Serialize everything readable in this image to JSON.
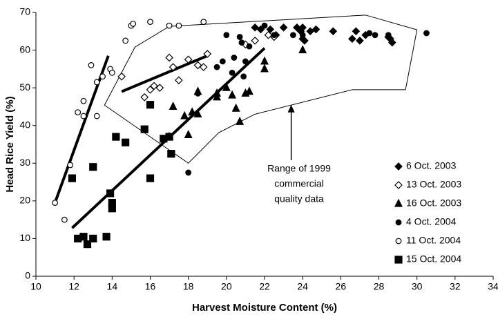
{
  "chart_data": {
    "type": "scatter",
    "xlabel": "Harvest Moisture Content (%)",
    "ylabel": "Head Rice Yield (%)",
    "xlim": [
      10,
      34
    ],
    "xticks": [
      10,
      12,
      14,
      16,
      18,
      20,
      22,
      24,
      26,
      28,
      30,
      32,
      34
    ],
    "ylim": [
      0,
      70
    ],
    "yticks": [
      0,
      10,
      20,
      30,
      40,
      50,
      60,
      70
    ],
    "legend": "lower right",
    "series": [
      {
        "name": "6 Oct. 2003",
        "color": "#000000",
        "marker": "diamond",
        "filled": true,
        "x": [
          21.5,
          21.8,
          22.3,
          22.6,
          23,
          23.7,
          23.9,
          24,
          24,
          24.1,
          24.4,
          24.7,
          25.6,
          26.6,
          26.8,
          27,
          27.3,
          28.5,
          28.7,
          28.6
        ],
        "values": [
          66,
          65.5,
          65.5,
          64,
          66,
          66,
          65,
          66,
          63,
          62.5,
          65,
          65.5,
          65,
          63,
          65,
          62.5,
          64,
          63.5,
          62,
          63
        ]
      },
      {
        "name": "13 Oct. 2003",
        "color": "#000000",
        "marker": "diamond",
        "filled": false,
        "x": [
          14.5,
          15.7,
          16,
          16.2,
          16.5,
          17,
          17.2,
          17.5,
          18,
          18.5,
          18.8,
          19,
          21,
          21.5,
          22.5,
          22.2
        ],
        "values": [
          53,
          47.5,
          49.5,
          50.5,
          50,
          58,
          55.5,
          52,
          57.5,
          56,
          55.5,
          59,
          61.5,
          62.5,
          63.5,
          64
        ]
      },
      {
        "name": "16 Oct. 2003",
        "color": "#000000",
        "marker": "triangle",
        "filled": true,
        "x": [
          17,
          17.2,
          17.8,
          18,
          18.2,
          18.5,
          18.5,
          19.5,
          19.5,
          20,
          20.3,
          20.5,
          20.7,
          21,
          21.2,
          22,
          22,
          24
        ],
        "values": [
          37,
          45,
          42.5,
          37.5,
          43.5,
          43,
          49,
          48.5,
          47.5,
          50,
          48,
          44.5,
          41,
          48.5,
          49,
          55,
          57,
          60
        ]
      },
      {
        "name": "4 Oct. 2004",
        "color": "#000000",
        "marker": "circle",
        "filled": true,
        "x": [
          18,
          18.5,
          19.5,
          19.8,
          20,
          20.3,
          20.4,
          20.7,
          20.8,
          20.9,
          21,
          21.2,
          22,
          22.5,
          23.5,
          24,
          27.5,
          27.8,
          28.5,
          30.5
        ],
        "values": [
          27.5,
          48.5,
          55.5,
          57,
          64,
          54,
          58,
          63.5,
          62,
          53,
          57,
          61,
          66.5,
          64,
          64,
          64,
          64.5,
          64,
          64,
          64.5
        ]
      },
      {
        "name": "11 Oct. 2004",
        "color": "#000000",
        "marker": "circle",
        "filled": false,
        "x": [
          11,
          11.5,
          11.8,
          12.2,
          12.5,
          12.5,
          12.9,
          13.2,
          13.2,
          13.5,
          13.9,
          14,
          14.7,
          15,
          15.1,
          16,
          17,
          17.5,
          18.8
        ],
        "values": [
          19.5,
          15,
          29.5,
          43.5,
          42.5,
          46.5,
          56,
          51.5,
          42.5,
          53,
          55,
          54,
          62.5,
          66.5,
          67,
          67.5,
          66.5,
          66.5,
          67.5
        ]
      },
      {
        "name": "15 Oct. 2004",
        "color": "#000000",
        "marker": "square",
        "filled": true,
        "x": [
          11.9,
          12.2,
          12.5,
          12.7,
          13,
          13,
          13.7,
          13.9,
          14,
          14,
          14.2,
          14.7,
          15.7,
          16,
          16,
          16.7,
          17,
          17.1
        ],
        "values": [
          26,
          10,
          10.5,
          8.5,
          29,
          10,
          10.5,
          22,
          19.5,
          18,
          37,
          35.5,
          39,
          26,
          45.5,
          36.5,
          37,
          32.5
        ]
      }
    ],
    "trend_lines": [
      {
        "x": [
          11,
          13.8
        ],
        "values": [
          19.5,
          58.5
        ]
      },
      {
        "x": [
          14.5,
          19
        ],
        "values": [
          49,
          58.5
        ]
      },
      {
        "x": [
          11.9,
          22
        ],
        "values": [
          12.8,
          60.5
        ]
      }
    ],
    "region": {
      "label": [
        "Range of 1999",
        "commercial",
        "quality data"
      ],
      "x": [
        13.6,
        15.2,
        17,
        27.3,
        30,
        29.4,
        26.6,
        21.5,
        19.6,
        18
      ],
      "values": [
        45.4,
        60.8,
        66.3,
        69.3,
        65.4,
        49.5,
        49.5,
        43,
        38.1,
        30
      ],
      "arrow_to": [
        23.4,
        45.5
      ]
    }
  }
}
